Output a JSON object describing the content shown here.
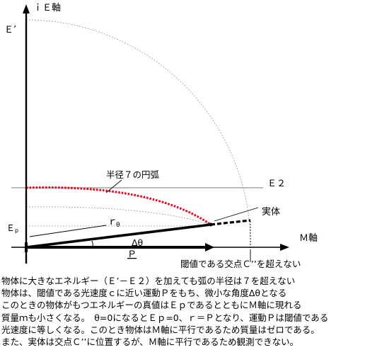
{
  "labels": {
    "y_axis": "ｉＥ軸",
    "x_axis": "Ｍ軸",
    "e_prime": "Ｅ’",
    "e2": "Ｅ２",
    "ep_main": "Ｅ",
    "ep_sub": "p",
    "radius_main": "ｒ",
    "radius_sub": "θ",
    "delta_theta": "Δθ",
    "momentum": "Ｐ",
    "arc": "半径７の円弧",
    "entity": "実体",
    "threshold_note": "閾値である交点Ｃ’’を超えない"
  },
  "caption": [
    "物体に大きなエネルギー（Ｅ’－Ｅ２）を加えても弧の半径は７を超えない",
    "物体は、閾値である光速度ｃに近い運動Ｐをもち、微小な角度Δθとなる",
    "このときの物体がもつエネルギーの真値はＥｐであるとともにＭ軸に現れる",
    "質量ｍも小さくなる。　θ=0になるとＥｐ=0、ｒ＝Ｐとなり、運動Ｐは閾値である",
    "光速度に等しくなる。このとき物体はＭ軸に平行であるため質量はゼロである。",
    "また、実体は交点Ｃ’’に位置するが、Ｍ軸に平行であるため観測できない。"
  ],
  "colors": {
    "arc": "#e8001c",
    "axes": "#000000",
    "guide": "#9a9a9a",
    "e2_line": "#777777"
  }
}
